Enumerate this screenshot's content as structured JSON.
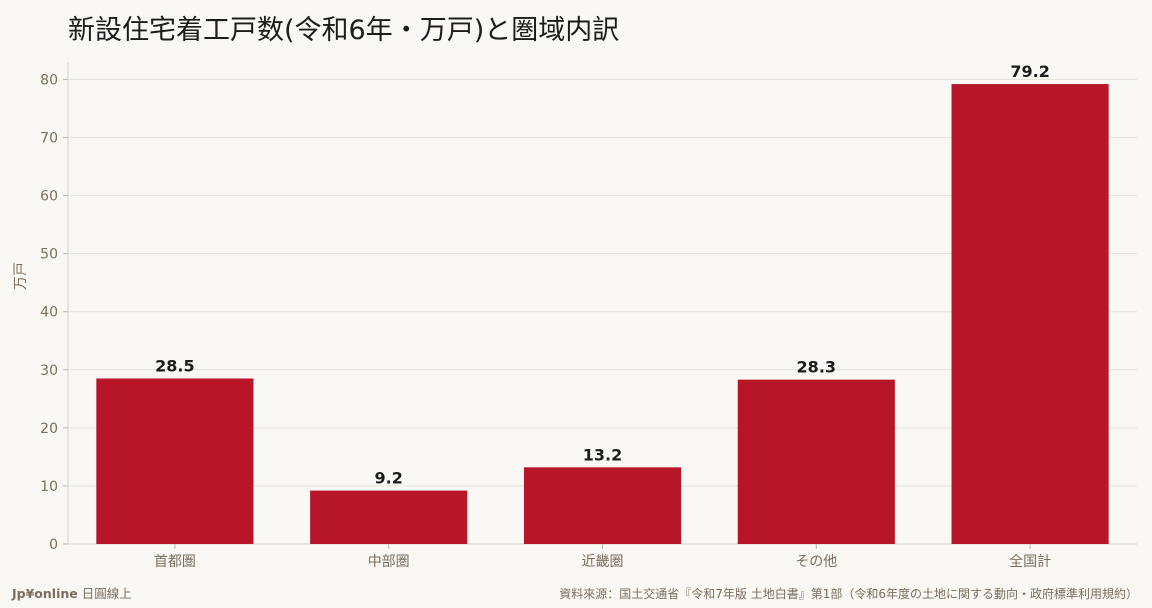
{
  "chart_data": {
    "type": "bar",
    "title": "新設住宅着工戸数(令和6年・万戸)と圏域内訳",
    "xlabel": "",
    "ylabel": "万戸",
    "categories": [
      "首都圏",
      "中部圏",
      "近畿圏",
      "その他",
      "全国計"
    ],
    "values": [
      28.5,
      9.2,
      13.2,
      28.3,
      79.2
    ],
    "data_labels": [
      "28.5",
      "9.2",
      "13.2",
      "28.3",
      "79.2"
    ],
    "ylim": [
      0,
      83
    ],
    "yticks": [
      0,
      10,
      20,
      30,
      40,
      50,
      60,
      70,
      80
    ],
    "grid": true,
    "bar_color": "#b71629"
  },
  "footer": {
    "brand": "Jp¥online",
    "brand_suffix": "日圓線上",
    "source": "資料來源：国土交通省『令和7年版 土地白書』第1部（令和6年度の土地に関する動向・政府標準利用規約）"
  }
}
